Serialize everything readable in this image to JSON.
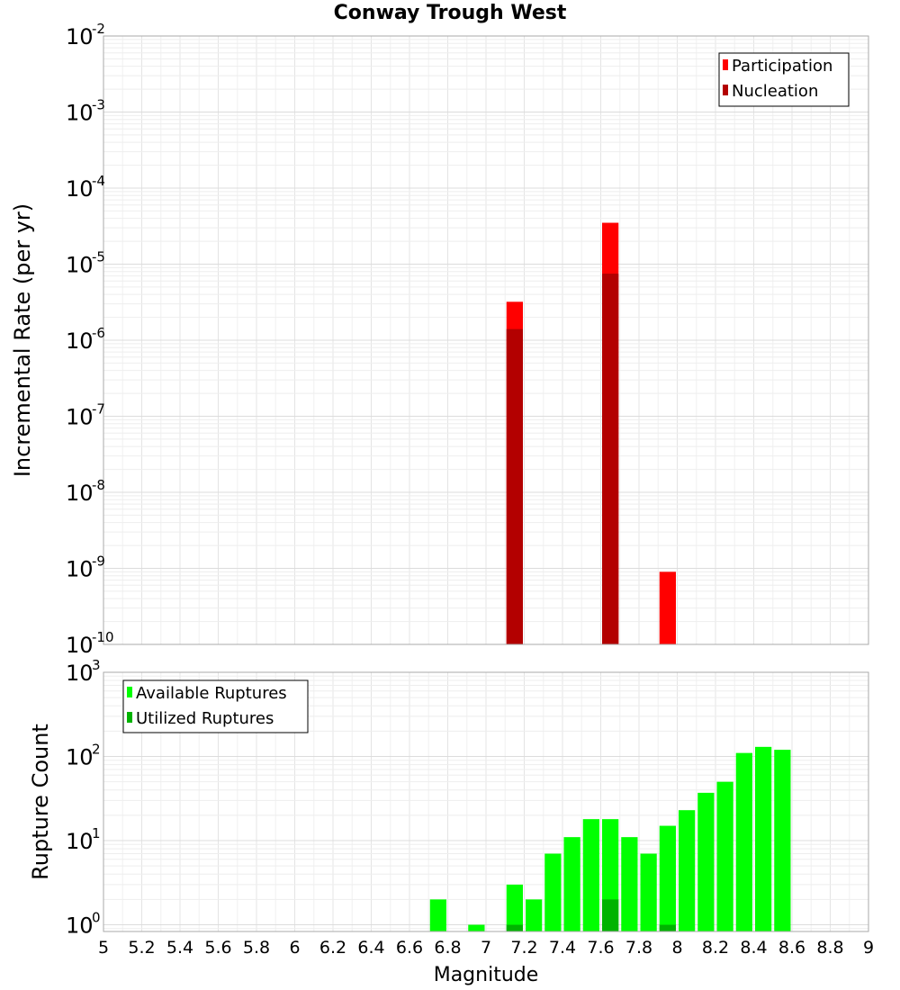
{
  "title": "Conway Trough West",
  "chart_data": [
    {
      "type": "bar",
      "name": "incremental-rate",
      "scale": "log",
      "ylabel": "Incremental Rate (per yr)",
      "ylim_exp": [
        -10,
        -2
      ],
      "xlim": [
        5,
        9
      ],
      "bar_width": 0.1,
      "y_ticks": [
        {
          "exp": -2,
          "base": "10",
          "sup": "-2"
        },
        {
          "exp": -3,
          "base": "10",
          "sup": "-3"
        },
        {
          "exp": -4,
          "base": "10",
          "sup": "-4"
        },
        {
          "exp": -5,
          "base": "10",
          "sup": "-5"
        },
        {
          "exp": -6,
          "base": "10",
          "sup": "-6"
        },
        {
          "exp": -7,
          "base": "10",
          "sup": "-7"
        },
        {
          "exp": -8,
          "base": "10",
          "sup": "-8"
        },
        {
          "exp": -9,
          "base": "10",
          "sup": "-9"
        },
        {
          "exp": -10,
          "base": "10",
          "sup": "-10"
        }
      ],
      "legend": [
        "Participation",
        "Nucleation"
      ],
      "series": [
        {
          "name": "Participation",
          "color": "#ff0000",
          "x": [
            7.15,
            7.65,
            7.95
          ],
          "values": [
            3.2e-06,
            3.5e-05,
            9e-10
          ]
        },
        {
          "name": "Nucleation",
          "color": "#b30000",
          "x": [
            7.15,
            7.65
          ],
          "values": [
            1.4e-06,
            7.5e-06
          ]
        }
      ]
    },
    {
      "type": "bar",
      "name": "rupture-count",
      "scale": "log",
      "ylabel": "Rupture Count",
      "ylim_exp": [
        -0.08,
        3
      ],
      "xlim": [
        5,
        9
      ],
      "bar_width": 0.1,
      "y_ticks": [
        {
          "exp": 3,
          "base": "10",
          "sup": "3"
        },
        {
          "exp": 2,
          "base": "10",
          "sup": "2"
        },
        {
          "exp": 1,
          "base": "10",
          "sup": "1"
        },
        {
          "exp": 0,
          "base": "10",
          "sup": "0"
        }
      ],
      "legend": [
        "Available Ruptures",
        "Utilized Ruptures"
      ],
      "series": [
        {
          "name": "Available Ruptures",
          "color": "#00ff00",
          "x": [
            6.75,
            6.95,
            7.15,
            7.25,
            7.35,
            7.45,
            7.55,
            7.65,
            7.75,
            7.85,
            7.95,
            8.05,
            8.15,
            8.25,
            8.35,
            8.45,
            8.55
          ],
          "values": [
            2,
            1,
            3,
            2,
            7,
            11,
            18,
            18,
            11,
            7,
            15,
            23,
            37,
            50,
            110,
            130,
            120
          ]
        },
        {
          "name": "Utilized Ruptures",
          "color": "#00b300",
          "x": [
            7.15,
            7.65,
            7.95
          ],
          "values": [
            1,
            2,
            1
          ]
        }
      ]
    }
  ],
  "xaxis": {
    "label": "Magnitude",
    "ticks": [
      "5",
      "5.2",
      "5.4",
      "5.6",
      "5.8",
      "6",
      "6.2",
      "6.4",
      "6.6",
      "6.8",
      "7",
      "7.2",
      "7.4",
      "7.6",
      "7.8",
      "8",
      "8.2",
      "8.4",
      "8.6",
      "8.8",
      "9"
    ]
  }
}
